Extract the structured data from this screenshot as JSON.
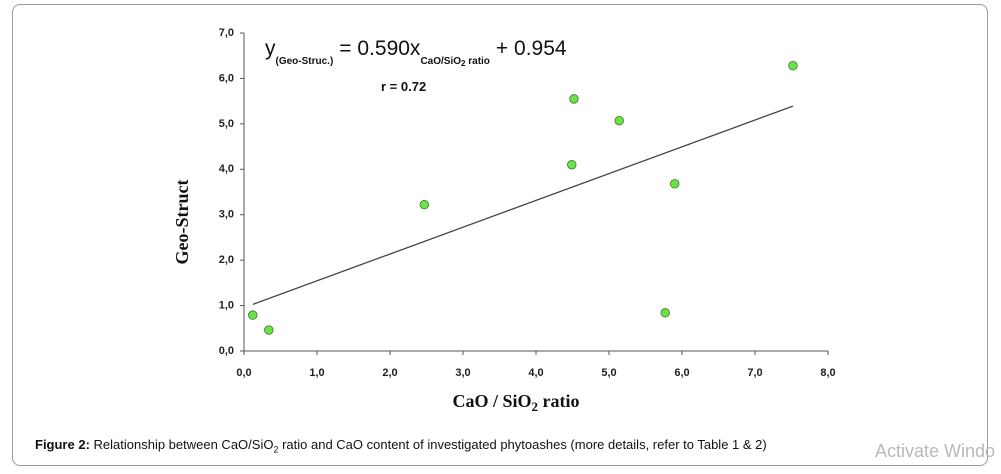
{
  "chart_data": {
    "type": "scatter",
    "x_label": {
      "main": "CaO / SiO",
      "sub": "2",
      "tail": " ratio"
    },
    "y_label": "Geo-Struct",
    "equation": {
      "y": "y",
      "y_sub": "(Geo-Struc.)",
      "slope_text": "= 0.590x",
      "x_sub": "CaO/SiO",
      "x_sub2": "2",
      "x_sub3": " ratio",
      "intercept_text": "+ 0.954"
    },
    "annotation": "r = 0.72",
    "x": [
      0.12,
      0.34,
      2.47,
      4.49,
      4.52,
      5.14,
      5.77,
      5.9,
      7.52
    ],
    "values": [
      0.79,
      0.46,
      3.22,
      4.1,
      5.55,
      5.07,
      0.84,
      3.68,
      6.28
    ],
    "color": "#6de04a",
    "trendline": {
      "slope": 0.59,
      "intercept": 0.954,
      "x": [
        0.12,
        7.52
      ],
      "color": "#444444"
    },
    "xlim": [
      0,
      8
    ],
    "ylim": [
      0,
      7
    ],
    "xticks": [
      {
        "value": 0,
        "label": "0,0"
      },
      {
        "value": 1,
        "label": "1,0"
      },
      {
        "value": 2,
        "label": "2,0"
      },
      {
        "value": 3,
        "label": "3,0"
      },
      {
        "value": 4,
        "label": "4,0"
      },
      {
        "value": 5,
        "label": "5,0"
      },
      {
        "value": 6,
        "label": "6,0"
      },
      {
        "value": 7,
        "label": "7,0"
      },
      {
        "value": 8,
        "label": "8,0"
      }
    ],
    "yticks": [
      {
        "value": 0,
        "label": "0,0"
      },
      {
        "value": 1,
        "label": "1,0"
      },
      {
        "value": 2,
        "label": "2,0"
      },
      {
        "value": 3,
        "label": "3,0"
      },
      {
        "value": 4,
        "label": "4,0"
      },
      {
        "value": 5,
        "label": "5,0"
      },
      {
        "value": 6,
        "label": "6,0"
      },
      {
        "value": 7,
        "label": "7,0"
      }
    ],
    "grid": false
  },
  "caption": {
    "label": "Figure 2:",
    "text": " Relationship between CaO/SiO",
    "sub": "2",
    "tail": " ratio and CaO content of investigated phytoashes (more details, refer to Table 1 & 2)"
  },
  "watermark": "Activate Windo"
}
